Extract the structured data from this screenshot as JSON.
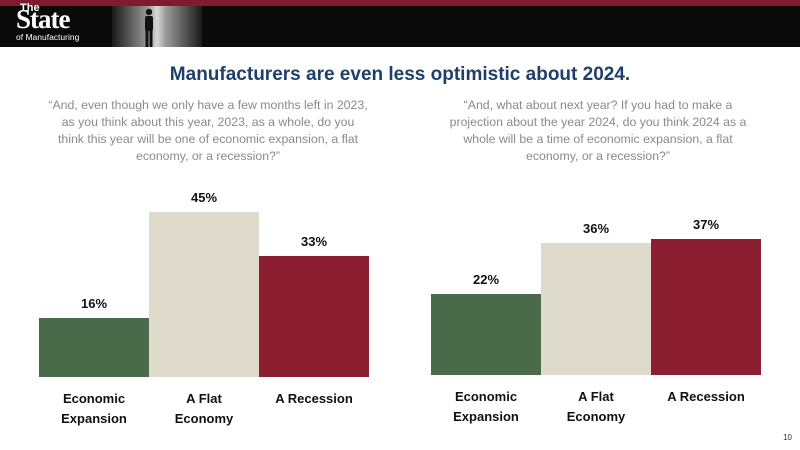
{
  "header": {
    "logo_the": "The",
    "logo_state": "State",
    "logo_manufacturing": "of Manufacturing"
  },
  "slide": {
    "title": "Manufacturers are even less optimistic about 2024.",
    "page_number": "10"
  },
  "colors": {
    "expansion": "#4a6b4a",
    "flat": "#dedbcc",
    "recession": "#8b1e30",
    "title": "#1f3f6b"
  },
  "chart_data": [
    {
      "type": "bar",
      "question": "“And, even though we only have a few months left in 2023, as you think about this year, 2023, as a whole, do you think this year will be one of economic expansion, a flat economy, or a recession?”",
      "categories": [
        "Economic Expansion",
        "A Flat Economy",
        "A Recession"
      ],
      "values": [
        16,
        45,
        33
      ],
      "value_labels": [
        "16%",
        "45%",
        "33%"
      ],
      "ylim": [
        0,
        45
      ],
      "grid": false
    },
    {
      "type": "bar",
      "question": "“And, what about next year? If you had to make a projection about the year 2024, do you think 2024 as a whole will be a time of economic expansion, a flat economy, or a recession?”",
      "categories": [
        "Economic Expansion",
        "A Flat Economy",
        "A Recession"
      ],
      "values": [
        22,
        36,
        37
      ],
      "value_labels": [
        "22%",
        "36%",
        "37%"
      ],
      "ylim": [
        0,
        45
      ],
      "grid": false
    }
  ]
}
